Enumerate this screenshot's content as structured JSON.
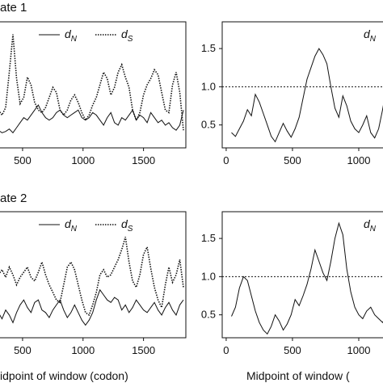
{
  "row_titles": [
    "ate 1",
    "ate 2"
  ],
  "xlabels": [
    "idpoint of window (codon)",
    "Midpoint of window ("
  ],
  "chart_data": [
    {
      "type": "line",
      "row": 0,
      "col": 0,
      "legend_placement": "top",
      "xlim": [
        300,
        1850
      ],
      "ylim": [
        0,
        1
      ],
      "y_scale_labels": false,
      "xticks": [
        500,
        1000,
        1500
      ],
      "xtick_labels": [
        "500",
        "1000",
        "1500"
      ],
      "legend": [
        {
          "base": "d",
          "sub": "N",
          "series_index": 0
        },
        {
          "base": "d",
          "sub": "S",
          "series_index": 1
        }
      ],
      "series": [
        {
          "style": "solid",
          "x": [
            300,
            330,
            360,
            390,
            420,
            450,
            480,
            510,
            540,
            570,
            600,
            630,
            660,
            690,
            720,
            750,
            780,
            810,
            840,
            870,
            900,
            930,
            960,
            990,
            1020,
            1050,
            1080,
            1110,
            1140,
            1170,
            1200,
            1230,
            1260,
            1290,
            1320,
            1350,
            1380,
            1410,
            1440,
            1470,
            1500,
            1530,
            1560,
            1590,
            1620,
            1650,
            1680,
            1710,
            1740,
            1770,
            1800,
            1830
          ],
          "y": [
            0.14,
            0.12,
            0.13,
            0.15,
            0.12,
            0.16,
            0.2,
            0.24,
            0.22,
            0.26,
            0.3,
            0.34,
            0.28,
            0.24,
            0.22,
            0.24,
            0.28,
            0.3,
            0.26,
            0.24,
            0.26,
            0.28,
            0.3,
            0.24,
            0.22,
            0.24,
            0.28,
            0.26,
            0.22,
            0.18,
            0.24,
            0.28,
            0.2,
            0.18,
            0.24,
            0.22,
            0.26,
            0.3,
            0.22,
            0.26,
            0.24,
            0.2,
            0.28,
            0.24,
            0.2,
            0.22,
            0.18,
            0.2,
            0.16,
            0.14,
            0.18,
            0.3
          ]
        },
        {
          "style": "dotted",
          "x": [
            300,
            330,
            360,
            390,
            420,
            450,
            480,
            510,
            540,
            570,
            600,
            630,
            660,
            690,
            720,
            750,
            780,
            810,
            840,
            870,
            900,
            930,
            960,
            990,
            1020,
            1050,
            1080,
            1110,
            1140,
            1170,
            1200,
            1230,
            1260,
            1290,
            1320,
            1350,
            1380,
            1410,
            1440,
            1470,
            1500,
            1530,
            1560,
            1590,
            1620,
            1650,
            1680,
            1710,
            1740,
            1770,
            1800,
            1830
          ],
          "y": [
            0.3,
            0.26,
            0.32,
            0.6,
            0.9,
            0.55,
            0.35,
            0.4,
            0.56,
            0.5,
            0.36,
            0.3,
            0.28,
            0.32,
            0.4,
            0.48,
            0.44,
            0.3,
            0.26,
            0.3,
            0.38,
            0.42,
            0.36,
            0.28,
            0.22,
            0.26,
            0.34,
            0.4,
            0.5,
            0.6,
            0.55,
            0.42,
            0.48,
            0.6,
            0.66,
            0.56,
            0.48,
            0.3,
            0.22,
            0.28,
            0.42,
            0.5,
            0.55,
            0.62,
            0.58,
            0.44,
            0.3,
            0.28,
            0.5,
            0.6,
            0.44,
            0.14
          ]
        }
      ]
    },
    {
      "type": "line",
      "row": 0,
      "col": 1,
      "xlim": [
        -30,
        1250
      ],
      "ylim": [
        0.2,
        1.85
      ],
      "xticks": [
        0,
        500,
        1000
      ],
      "xtick_labels": [
        "0",
        "500",
        "1000"
      ],
      "yticks": [
        0.5,
        1.0,
        1.5
      ],
      "ytick_labels": [
        "0.5",
        "1.0",
        "1.5"
      ],
      "reference_line": 1.0,
      "corner_label": {
        "base": "d",
        "sub": "N"
      },
      "series": [
        {
          "style": "solid",
          "x": [
            40,
            70,
            100,
            130,
            160,
            190,
            220,
            250,
            280,
            310,
            340,
            370,
            400,
            430,
            460,
            490,
            520,
            550,
            580,
            610,
            640,
            670,
            700,
            730,
            760,
            790,
            820,
            850,
            880,
            910,
            940,
            970,
            1000,
            1030,
            1060,
            1090,
            1120,
            1150,
            1180,
            1210,
            1240
          ],
          "y": [
            0.4,
            0.35,
            0.45,
            0.55,
            0.7,
            0.62,
            0.9,
            0.8,
            0.65,
            0.5,
            0.35,
            0.28,
            0.4,
            0.52,
            0.42,
            0.34,
            0.45,
            0.6,
            0.85,
            1.1,
            1.25,
            1.4,
            1.5,
            1.42,
            1.3,
            1.0,
            0.72,
            0.6,
            0.88,
            0.75,
            0.55,
            0.45,
            0.4,
            0.5,
            0.62,
            0.4,
            0.33,
            0.45,
            0.7,
            1.0,
            1.12
          ]
        }
      ]
    },
    {
      "type": "line",
      "row": 1,
      "col": 0,
      "legend_placement": "top",
      "xlim": [
        300,
        1850
      ],
      "ylim": [
        0,
        1
      ],
      "y_scale_labels": false,
      "xticks": [
        500,
        1000,
        1500
      ],
      "xtick_labels": [
        "500",
        "1000",
        "1500"
      ],
      "legend": [
        {
          "base": "d",
          "sub": "N",
          "series_index": 0
        },
        {
          "base": "d",
          "sub": "S",
          "series_index": 1
        }
      ],
      "series": [
        {
          "style": "solid",
          "x": [
            300,
            330,
            360,
            390,
            420,
            450,
            480,
            510,
            540,
            570,
            600,
            630,
            660,
            690,
            720,
            750,
            780,
            810,
            840,
            870,
            900,
            930,
            960,
            990,
            1020,
            1050,
            1080,
            1110,
            1140,
            1170,
            1200,
            1230,
            1260,
            1290,
            1320,
            1350,
            1380,
            1410,
            1440,
            1470,
            1500,
            1530,
            1560,
            1590,
            1620,
            1650,
            1680,
            1710,
            1740,
            1770,
            1800,
            1830
          ],
          "y": [
            0.2,
            0.15,
            0.22,
            0.18,
            0.12,
            0.2,
            0.26,
            0.3,
            0.24,
            0.2,
            0.28,
            0.3,
            0.22,
            0.2,
            0.16,
            0.22,
            0.26,
            0.3,
            0.22,
            0.16,
            0.2,
            0.26,
            0.2,
            0.14,
            0.1,
            0.14,
            0.2,
            0.3,
            0.38,
            0.34,
            0.3,
            0.28,
            0.32,
            0.3,
            0.22,
            0.26,
            0.2,
            0.24,
            0.3,
            0.26,
            0.22,
            0.2,
            0.24,
            0.28,
            0.22,
            0.18,
            0.24,
            0.28,
            0.22,
            0.18,
            0.26,
            0.3
          ]
        },
        {
          "style": "dotted",
          "x": [
            300,
            330,
            360,
            390,
            420,
            450,
            480,
            510,
            540,
            570,
            600,
            630,
            660,
            690,
            720,
            750,
            780,
            810,
            840,
            870,
            900,
            930,
            960,
            990,
            1020,
            1050,
            1080,
            1110,
            1140,
            1170,
            1200,
            1230,
            1260,
            1290,
            1320,
            1350,
            1380,
            1410,
            1440,
            1470,
            1500,
            1530,
            1560,
            1590,
            1620,
            1650,
            1680,
            1710,
            1740,
            1770,
            1800,
            1830
          ],
          "y": [
            0.5,
            0.54,
            0.48,
            0.56,
            0.5,
            0.42,
            0.48,
            0.52,
            0.56,
            0.48,
            0.45,
            0.52,
            0.6,
            0.5,
            0.42,
            0.36,
            0.3,
            0.28,
            0.42,
            0.56,
            0.6,
            0.54,
            0.42,
            0.3,
            0.2,
            0.18,
            0.26,
            0.36,
            0.5,
            0.54,
            0.48,
            0.5,
            0.56,
            0.62,
            0.7,
            0.8,
            0.6,
            0.45,
            0.4,
            0.5,
            0.66,
            0.72,
            0.55,
            0.4,
            0.3,
            0.24,
            0.42,
            0.56,
            0.44,
            0.5,
            0.62,
            0.4
          ]
        }
      ]
    },
    {
      "type": "line",
      "row": 1,
      "col": 1,
      "xlim": [
        -30,
        1250
      ],
      "ylim": [
        0.2,
        1.85
      ],
      "xticks": [
        0,
        500,
        1000
      ],
      "xtick_labels": [
        "0",
        "500",
        "1000"
      ],
      "yticks": [
        0.5,
        1.0,
        1.5
      ],
      "ytick_labels": [
        "0.5",
        "1.0",
        "1.5"
      ],
      "reference_line": 1.0,
      "corner_label": {
        "base": "d",
        "sub": "N"
      },
      "series": [
        {
          "style": "solid",
          "x": [
            40,
            70,
            100,
            130,
            160,
            190,
            220,
            250,
            280,
            310,
            340,
            370,
            400,
            430,
            460,
            490,
            520,
            550,
            580,
            610,
            640,
            670,
            700,
            730,
            760,
            790,
            820,
            850,
            880,
            910,
            940,
            970,
            1000,
            1030,
            1060,
            1090,
            1120,
            1150,
            1180,
            1210,
            1240
          ],
          "y": [
            0.48,
            0.6,
            0.85,
            1.0,
            0.95,
            0.75,
            0.55,
            0.4,
            0.3,
            0.25,
            0.35,
            0.5,
            0.42,
            0.3,
            0.38,
            0.5,
            0.7,
            0.62,
            0.75,
            0.9,
            1.1,
            1.35,
            1.2,
            1.05,
            0.95,
            1.2,
            1.5,
            1.7,
            1.55,
            1.1,
            0.8,
            0.6,
            0.5,
            0.45,
            0.55,
            0.6,
            0.5,
            0.45,
            0.4,
            0.48,
            0.55
          ]
        }
      ]
    }
  ]
}
